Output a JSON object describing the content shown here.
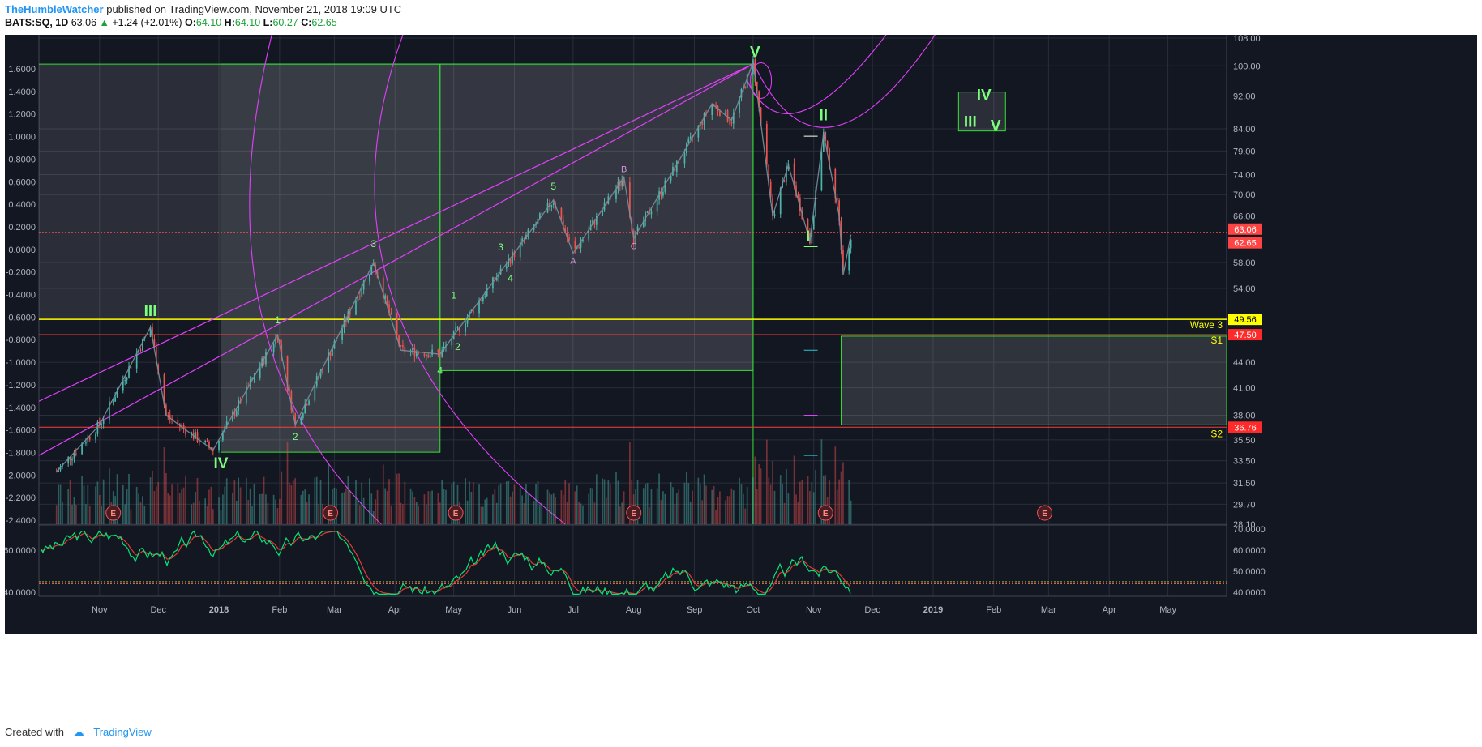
{
  "header": {
    "author": "TheHumbleWatcher",
    "published": "published on TradingView.com, November 21, 2018 19:09 UTC"
  },
  "symbol_line": {
    "symbol": "BATS:SQ, 1D",
    "last": "63.06",
    "change": "+1.24 (+2.01%)",
    "open_label": "O:",
    "open": "64.10",
    "high_label": "H:",
    "high": "64.10",
    "low_label": "L:",
    "low": "60.27",
    "close_label": "C:",
    "close": "62.65"
  },
  "footer": {
    "created_with": "Created with",
    "brand": "TradingView"
  },
  "colors": {
    "background": "#131722",
    "grid": "#2a2e39",
    "candle_up": "#4db6ac",
    "candle_down": "#ef5350",
    "fib_lines": "#e040fb",
    "boxes": "#33e033",
    "wave_labels": "#7dff7d",
    "wave3_line": "#ffff00",
    "s1_line": "#ff3b3b",
    "price_badge": "#ff4444"
  },
  "chart_data": {
    "type": "candlestick",
    "xlabel": "",
    "ylabel": "",
    "x_ticks": [
      "Nov",
      "Dec",
      "2018",
      "Feb",
      "Mar",
      "Apr",
      "May",
      "Jun",
      "Jul",
      "Aug",
      "Sep",
      "Oct",
      "Nov",
      "Dec",
      "2019",
      "Feb",
      "Mar",
      "Apr",
      "May"
    ],
    "right_price_ticks": [
      "108.00",
      "100.00",
      "92.00",
      "84.00",
      "79.00",
      "74.00",
      "70.00",
      "66.00",
      "58.00",
      "54.00",
      "44.00",
      "41.00",
      "38.00",
      "35.50",
      "33.50",
      "31.50",
      "29.70",
      "28.10"
    ],
    "left_log_ticks": [
      "1.6000",
      "1.4000",
      "1.2000",
      "1.0000",
      "0.8000",
      "0.6000",
      "0.4000",
      "0.2000",
      "0.0000",
      "-0.2000",
      "-0.4000",
      "-0.6000",
      "-0.8000",
      "-1.0000",
      "-1.2000",
      "-1.4000",
      "-1.6000",
      "-1.8000",
      "-2.0000",
      "-2.2000",
      "-2.4000"
    ],
    "ylim": [
      28.1,
      108.0
    ],
    "log_scale": true,
    "price_path": [
      {
        "d": "2017-10-10",
        "p": 32.5
      },
      {
        "d": "2017-11-01",
        "p": 37.0
      },
      {
        "d": "2017-11-27",
        "p": 48.5
      },
      {
        "d": "2017-12-05",
        "p": 38.0
      },
      {
        "d": "2017-12-29",
        "p": 34.5
      },
      {
        "d": "2018-01-31",
        "p": 47.5
      },
      {
        "d": "2018-02-09",
        "p": 37.0
      },
      {
        "d": "2018-03-21",
        "p": 58.0
      },
      {
        "d": "2018-04-04",
        "p": 45.5
      },
      {
        "d": "2018-04-24",
        "p": 45.0
      },
      {
        "d": "2018-06-21",
        "p": 69.0
      },
      {
        "d": "2018-07-01",
        "p": 59.5
      },
      {
        "d": "2018-07-27",
        "p": 73.5
      },
      {
        "d": "2018-08-01",
        "p": 62.0
      },
      {
        "d": "2018-09-10",
        "p": 90.0
      },
      {
        "d": "2018-09-20",
        "p": 86.0
      },
      {
        "d": "2018-10-01",
        "p": 101.0
      },
      {
        "d": "2018-10-11",
        "p": 66.0
      },
      {
        "d": "2018-10-19",
        "p": 76.0
      },
      {
        "d": "2018-10-30",
        "p": 61.5
      },
      {
        "d": "2018-11-06",
        "p": 83.0
      },
      {
        "d": "2018-11-14",
        "p": 66.0
      },
      {
        "d": "2018-11-16",
        "p": 56.0
      },
      {
        "d": "2018-11-20",
        "p": 62.65
      }
    ],
    "price_labels": [
      {
        "text": "63.06",
        "value": 63.06
      },
      {
        "text": "62.65",
        "value": 62.65
      },
      {
        "text": "49.56",
        "value": 49.56
      },
      {
        "text": "47.50",
        "value": 47.5
      },
      {
        "text": "36.76",
        "value": 36.76
      }
    ],
    "level_lines": [
      {
        "name": "Wave 3",
        "value": 49.56
      },
      {
        "name": "S1",
        "value": 47.5
      },
      {
        "name": "S2",
        "value": 36.76
      }
    ],
    "level_names": {
      "wave3": "Wave 3",
      "s1": "S1",
      "s2": "S2"
    },
    "wave_labels": [
      {
        "text": "III",
        "d": "2017-11-27",
        "p": 50.0
      },
      {
        "text": "IV",
        "d": "2018-01-02",
        "p": 32.8
      },
      {
        "text": "V",
        "d": "2018-10-02",
        "p": 102.5
      },
      {
        "text": "II",
        "d": "2018-11-06",
        "p": 86.0
      },
      {
        "text": "I",
        "d": "2018-10-29",
        "p": 61.5
      },
      {
        "text": "IV",
        "d": "2019-01-27",
        "p": 91.0
      },
      {
        "text": "III",
        "d": "2019-01-20",
        "p": 84.5
      },
      {
        "text": "V",
        "d": "2019-02-02",
        "p": 83.5
      }
    ],
    "minor_labels": [
      {
        "text": "1",
        "d": "2018-01-31",
        "p": 49.0
      },
      {
        "text": "2",
        "d": "2018-02-09",
        "p": 35.5
      },
      {
        "text": "3",
        "d": "2018-03-21",
        "p": 60.5
      },
      {
        "text": "4",
        "d": "2018-04-24",
        "p": 42.6
      },
      {
        "text": "5",
        "d": "2018-06-21",
        "p": 71.0
      },
      {
        "text": "A",
        "d": "2018-07-01",
        "p": 57.8
      },
      {
        "text": "B",
        "d": "2018-07-27",
        "p": 74.5
      },
      {
        "text": "C",
        "d": "2018-08-01",
        "p": 60.2
      },
      {
        "text": "1",
        "d": "2018-05-01",
        "p": 52.5
      },
      {
        "text": "2",
        "d": "2018-05-03",
        "p": 45.5
      },
      {
        "text": "3",
        "d": "2018-05-25",
        "p": 60.0
      },
      {
        "text": "4",
        "d": "2018-05-30",
        "p": 55.0
      }
    ],
    "earnings_markers": [
      "2017-11-08",
      "2018-02-27",
      "2018-05-02",
      "2018-08-01",
      "2018-11-07",
      "2019-02-27"
    ],
    "earnings_label": "E",
    "oscillator": {
      "ticks_left": [
        "60.0000",
        "40.0000"
      ],
      "ticks_right": [
        "70.0000",
        "60.0000",
        "50.0000",
        "40.0000"
      ],
      "ylim": [
        38,
        70
      ]
    }
  }
}
